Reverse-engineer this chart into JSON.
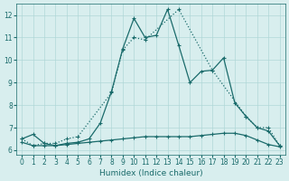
{
  "xlabel": "Humidex (Indice chaleur)",
  "bg_color": "#d8eeee",
  "grid_color": "#b0d8d8",
  "line_color": "#1a6b6b",
  "xlim": [
    -0.5,
    23.5
  ],
  "ylim": [
    5.8,
    12.5
  ],
  "yticks": [
    6,
    7,
    8,
    9,
    10,
    11,
    12
  ],
  "xticks": [
    0,
    1,
    2,
    3,
    4,
    5,
    6,
    7,
    8,
    9,
    10,
    11,
    12,
    13,
    14,
    15,
    16,
    17,
    18,
    19,
    20,
    21,
    22,
    23
  ],
  "line1_x": [
    0,
    1,
    2,
    3,
    4,
    5,
    6,
    7,
    8,
    9,
    10,
    11,
    12,
    13,
    14,
    15,
    16,
    17,
    18,
    19,
    20,
    21,
    22,
    23
  ],
  "line1_y": [
    6.5,
    6.7,
    6.3,
    6.2,
    6.3,
    6.35,
    6.5,
    7.2,
    8.6,
    10.5,
    11.85,
    11.0,
    11.1,
    12.25,
    10.65,
    9.0,
    9.5,
    9.55,
    10.1,
    8.1,
    7.5,
    7.0,
    6.85,
    6.2
  ],
  "line2_x": [
    0,
    1,
    2,
    3,
    4,
    5,
    6,
    7,
    8,
    9,
    10,
    11,
    12,
    13,
    14,
    15,
    16,
    17,
    18,
    19,
    20,
    21,
    22,
    23
  ],
  "line2_y": [
    6.35,
    6.2,
    6.2,
    6.2,
    6.25,
    6.3,
    6.35,
    6.4,
    6.45,
    6.5,
    6.55,
    6.6,
    6.6,
    6.6,
    6.6,
    6.6,
    6.65,
    6.7,
    6.75,
    6.75,
    6.65,
    6.45,
    6.25,
    6.15
  ],
  "line3_x": [
    0,
    1,
    2,
    3,
    4,
    5,
    8,
    9,
    10,
    11,
    14,
    17,
    20,
    21,
    22,
    23
  ],
  "line3_y": [
    6.5,
    6.2,
    6.3,
    6.3,
    6.5,
    6.6,
    8.55,
    10.45,
    11.0,
    10.9,
    12.25,
    9.55,
    7.5,
    7.0,
    7.0,
    6.2
  ]
}
